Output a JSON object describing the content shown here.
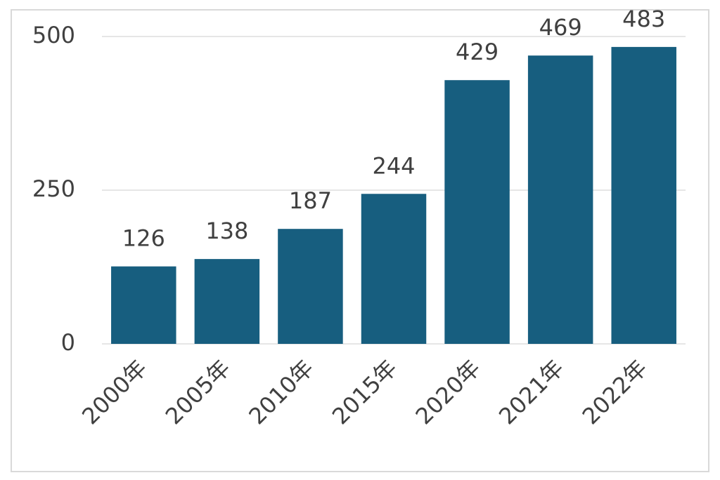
{
  "chart_data": {
    "type": "bar",
    "categories": [
      "2000年",
      "2005年",
      "2010年",
      "2015年",
      "2020年",
      "2021年",
      "2022年"
    ],
    "values": [
      126,
      138,
      187,
      244,
      429,
      469,
      483
    ],
    "color": "#175e7f",
    "ylim": [
      0,
      500
    ],
    "yticks": [
      0,
      250,
      500
    ],
    "grid": true
  }
}
